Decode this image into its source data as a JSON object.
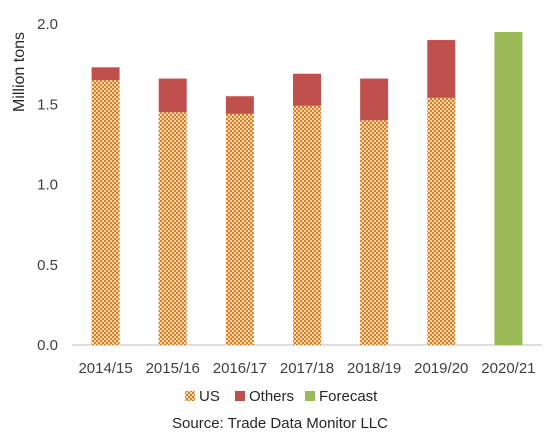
{
  "chart_data": {
    "type": "bar",
    "stacked": true,
    "categories": [
      "2014/15",
      "2015/16",
      "2016/17",
      "2017/18",
      "2018/19",
      "2019/20",
      "2020/21"
    ],
    "series": [
      {
        "name": "US",
        "values": [
          1.65,
          1.45,
          1.44,
          1.49,
          1.4,
          1.54,
          null
        ],
        "color": "#E07B20",
        "pattern": "dotted-hatch"
      },
      {
        "name": "Others",
        "values": [
          0.08,
          0.21,
          0.11,
          0.2,
          0.26,
          0.36,
          null
        ],
        "color": "#C0504D"
      },
      {
        "name": "Forecast",
        "values": [
          null,
          null,
          null,
          null,
          null,
          null,
          1.95
        ],
        "color": "#9BBB59"
      }
    ],
    "title": "",
    "xlabel": "",
    "ylabel": "Million tons",
    "ylim": [
      0,
      2.0
    ],
    "yticks": [
      "0.0",
      "0.5",
      "1.0",
      "1.5",
      "2.0"
    ],
    "grid": false,
    "legend_position": "bottom",
    "source": "Source: Trade Data Monitor LLC"
  }
}
